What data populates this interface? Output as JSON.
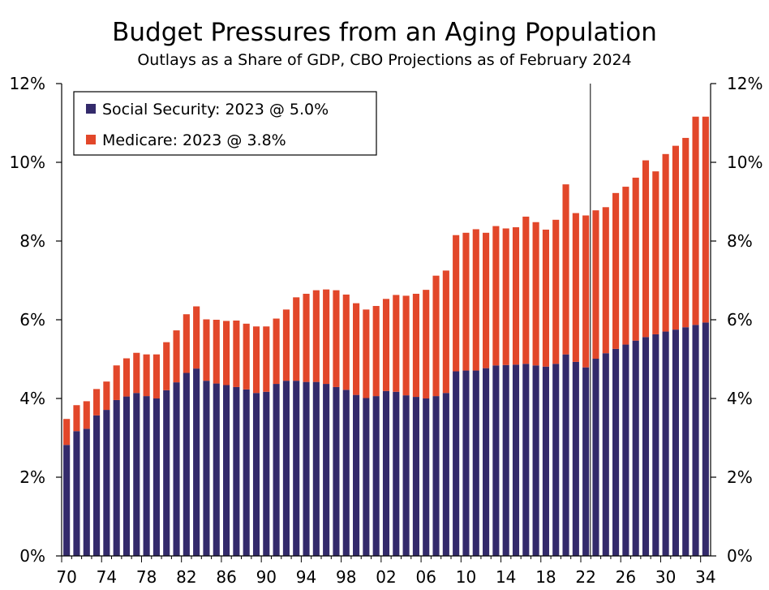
{
  "chart_data": {
    "type": "bar",
    "stacked": true,
    "title": "Budget Pressures from an Aging Population",
    "subtitle": "Outlays as a Share of GDP, CBO Projections as of February 2024",
    "ylim": [
      0,
      12
    ],
    "y_ticks": [
      "0%",
      "2%",
      "4%",
      "6%",
      "8%",
      "10%",
      "12%"
    ],
    "y_axis_both_sides": true,
    "grid": false,
    "legend_position": "top-left",
    "vertical_marker_year": 2023,
    "x_tick_labels": [
      "70",
      "74",
      "78",
      "82",
      "86",
      "90",
      "94",
      "98",
      "02",
      "06",
      "10",
      "14",
      "18",
      "22",
      "26",
      "30",
      "34"
    ],
    "categories": [
      1970,
      1971,
      1972,
      1973,
      1974,
      1975,
      1976,
      1977,
      1978,
      1979,
      1980,
      1981,
      1982,
      1983,
      1984,
      1985,
      1986,
      1987,
      1988,
      1989,
      1990,
      1991,
      1992,
      1993,
      1994,
      1995,
      1996,
      1997,
      1998,
      1999,
      2000,
      2001,
      2002,
      2003,
      2004,
      2005,
      2006,
      2007,
      2008,
      2009,
      2010,
      2011,
      2012,
      2013,
      2014,
      2015,
      2016,
      2017,
      2018,
      2019,
      2020,
      2021,
      2022,
      2023,
      2024,
      2025,
      2026,
      2027,
      2028,
      2029,
      2030,
      2031,
      2032,
      2033,
      2034
    ],
    "series": [
      {
        "name": "Social Security: 2023 @ 5.0%",
        "color": "#332a6b",
        "values": [
          2.82,
          3.17,
          3.23,
          3.57,
          3.71,
          3.96,
          4.05,
          4.14,
          4.06,
          4.0,
          4.21,
          4.41,
          4.65,
          4.76,
          4.45,
          4.38,
          4.34,
          4.29,
          4.23,
          4.14,
          4.17,
          4.37,
          4.45,
          4.45,
          4.42,
          4.42,
          4.37,
          4.29,
          4.22,
          4.09,
          4.01,
          4.06,
          4.19,
          4.17,
          4.08,
          4.04,
          4.0,
          4.06,
          4.14,
          4.69,
          4.71,
          4.71,
          4.77,
          4.84,
          4.85,
          4.86,
          4.88,
          4.84,
          4.81,
          4.88,
          5.12,
          4.93,
          4.79,
          5.01,
          5.15,
          5.26,
          5.37,
          5.47,
          5.56,
          5.63,
          5.7,
          5.75,
          5.81,
          5.87,
          5.93
        ]
      },
      {
        "name": "Medicare: 2023 @ 3.8%",
        "color": "#e2472a",
        "values": [
          0.66,
          0.66,
          0.7,
          0.67,
          0.72,
          0.88,
          0.97,
          1.02,
          1.06,
          1.12,
          1.22,
          1.32,
          1.49,
          1.58,
          1.56,
          1.62,
          1.63,
          1.69,
          1.67,
          1.69,
          1.66,
          1.66,
          1.81,
          2.12,
          2.24,
          2.33,
          2.4,
          2.46,
          2.42,
          2.33,
          2.25,
          2.29,
          2.34,
          2.46,
          2.53,
          2.62,
          2.76,
          3.06,
          3.11,
          3.46,
          3.5,
          3.59,
          3.44,
          3.54,
          3.47,
          3.49,
          3.74,
          3.64,
          3.48,
          3.66,
          4.32,
          3.78,
          3.86,
          3.77,
          3.71,
          3.96,
          4.01,
          4.14,
          4.49,
          4.14,
          4.51,
          4.67,
          4.81,
          5.29,
          5.23
        ]
      }
    ]
  }
}
